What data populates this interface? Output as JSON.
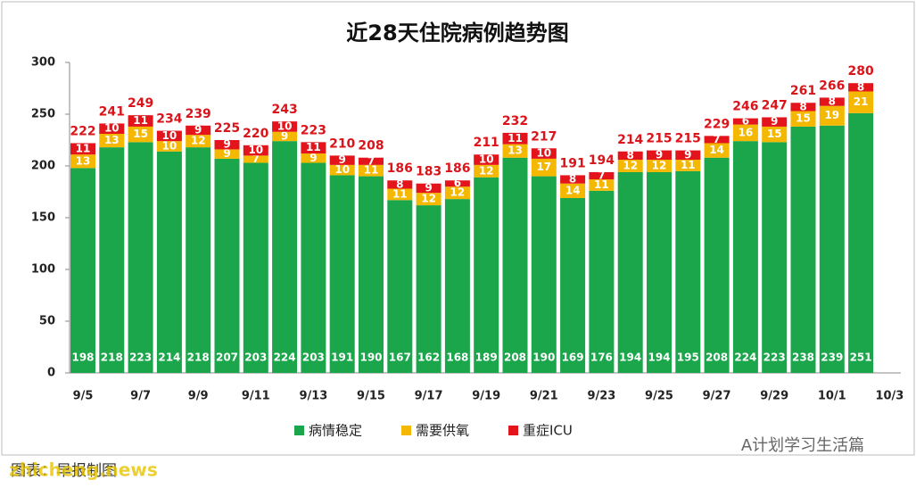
{
  "chart_data": {
    "type": "stacked-bar",
    "title": "近28天住院病例趋势图",
    "categories": [
      "9/5",
      null,
      "9/7",
      null,
      "9/9",
      null,
      "9/11",
      null,
      "9/13",
      null,
      "9/15",
      null,
      "9/17",
      null,
      "9/19",
      null,
      "9/21",
      null,
      "9/23",
      null,
      "9/25",
      null,
      "9/27",
      null,
      "9/29",
      null,
      "10/1",
      null,
      "10/3"
    ],
    "series": [
      {
        "name": "病情稳定",
        "color": "#1ba64b",
        "values": [
          198,
          218,
          223,
          214,
          218,
          207,
          203,
          224,
          203,
          191,
          190,
          167,
          162,
          168,
          189,
          208,
          190,
          169,
          176,
          194,
          194,
          195,
          208,
          224,
          223,
          238,
          239,
          251,
          null
        ]
      },
      {
        "name": "需要供氧",
        "color": "#f5b800",
        "values": [
          13,
          13,
          15,
          10,
          12,
          9,
          7,
          9,
          9,
          10,
          11,
          11,
          12,
          12,
          12,
          13,
          17,
          14,
          11,
          12,
          12,
          11,
          14,
          16,
          15,
          15,
          19,
          21,
          null
        ]
      },
      {
        "name": "重症ICU",
        "color": "#e3141b",
        "values": [
          11,
          10,
          11,
          10,
          9,
          9,
          10,
          10,
          11,
          9,
          7,
          8,
          9,
          6,
          10,
          11,
          10,
          8,
          7,
          8,
          9,
          9,
          7,
          6,
          9,
          8,
          8,
          8,
          null
        ]
      }
    ],
    "totals": [
      222,
      241,
      249,
      234,
      239,
      225,
      220,
      243,
      223,
      210,
      208,
      186,
      183,
      186,
      211,
      232,
      217,
      191,
      194,
      214,
      215,
      215,
      229,
      246,
      247,
      261,
      266,
      280,
      null
    ],
    "ylim": [
      0,
      300
    ],
    "yticks": [
      0,
      50,
      100,
      150,
      200,
      250,
      300
    ],
    "watermark": "A计划学习生活篇",
    "source": "图表：早报制图",
    "site": "zhicheng.news"
  }
}
